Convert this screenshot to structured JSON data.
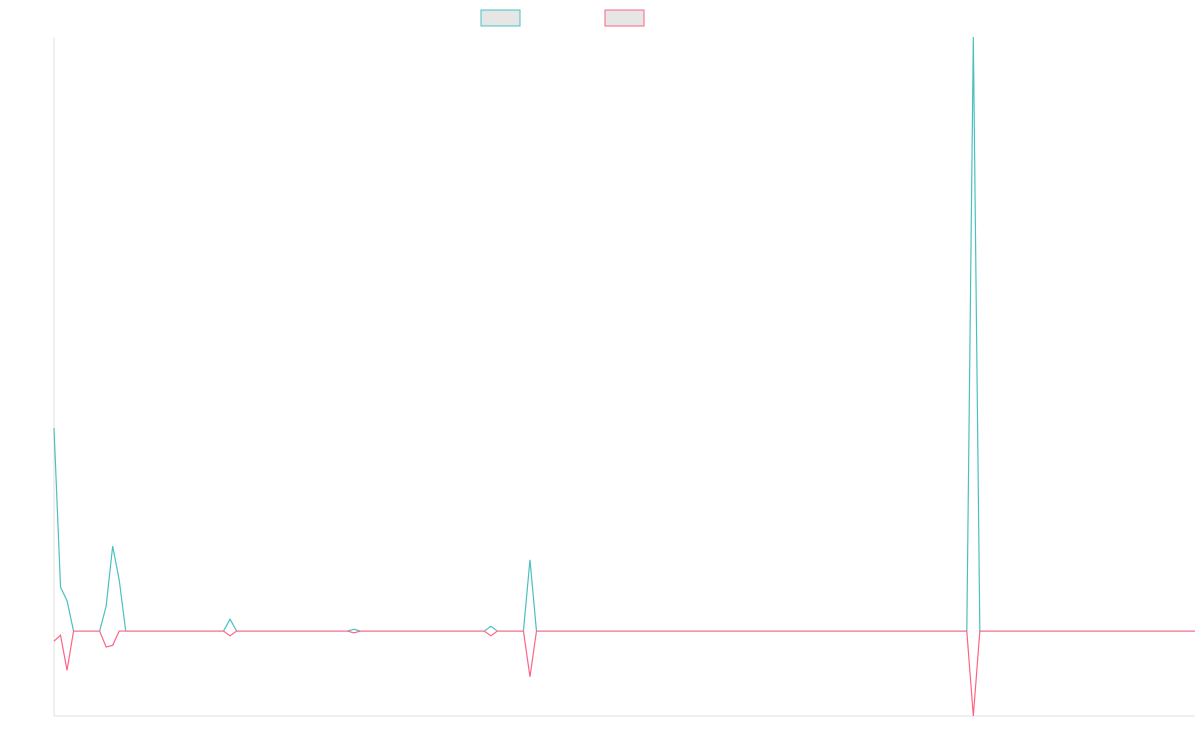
{
  "chart_data": {
    "type": "line",
    "series": [
      {
        "color": "#4bc0c0",
        "values": [
          34.2,
          7.4,
          5.1,
          0,
          0,
          0,
          0,
          0,
          4.2,
          14.3,
          8.6,
          0,
          0,
          0,
          0,
          0,
          0,
          0,
          0,
          0,
          0,
          0,
          0,
          0,
          0,
          0,
          0,
          2,
          0,
          0,
          0,
          0,
          0,
          0,
          0,
          0,
          0,
          0,
          0,
          0,
          0,
          0,
          0,
          0,
          0,
          0,
          0.3,
          0,
          0,
          0,
          0,
          0,
          0,
          0,
          0,
          0,
          0,
          0,
          0,
          0,
          0,
          0,
          0,
          0,
          0,
          0,
          0,
          0.8,
          0,
          0,
          0,
          0,
          0,
          12,
          0,
          0,
          0,
          0,
          0,
          0,
          0,
          0,
          0,
          0,
          0,
          0,
          0,
          0,
          0,
          0,
          0,
          0,
          0,
          0,
          0,
          0,
          0,
          0,
          0,
          0,
          0,
          0,
          0,
          0,
          0,
          0,
          0,
          0,
          0,
          0,
          0,
          0,
          0,
          0,
          0,
          0,
          0,
          0,
          0,
          0,
          0,
          0,
          0,
          0,
          0,
          0,
          0,
          0,
          0,
          0,
          0,
          0,
          0,
          0,
          0,
          0,
          0,
          0,
          0,
          0,
          0,
          100,
          0,
          0,
          0,
          0,
          0,
          0,
          0,
          0,
          0,
          0,
          0,
          0,
          0,
          0,
          0,
          0,
          0,
          0,
          0,
          0,
          0,
          0,
          0,
          0,
          0,
          0,
          0,
          0,
          0,
          0,
          0,
          0,
          0,
          0
        ]
      },
      {
        "color": "#ff6384",
        "values": [
          -1.7,
          -0.7,
          -6.6,
          0,
          0,
          0,
          0,
          0,
          -2.7,
          -2.4,
          0,
          0,
          0,
          0,
          0,
          0,
          0,
          0,
          0,
          0,
          0,
          0,
          0,
          0,
          0,
          0,
          0,
          -0.8,
          0,
          0,
          0,
          0,
          0,
          0,
          0,
          0,
          0,
          0,
          0,
          0,
          0,
          0,
          0,
          0,
          0,
          0,
          -0.3,
          0,
          0,
          0,
          0,
          0,
          0,
          0,
          0,
          0,
          0,
          0,
          0,
          0,
          0,
          0,
          0,
          0,
          0,
          0,
          0,
          -0.8,
          0,
          0,
          0,
          0,
          0,
          -7.7,
          0,
          0,
          0,
          0,
          0,
          0,
          0,
          0,
          0,
          0,
          0,
          0,
          0,
          0,
          0,
          0,
          0,
          0,
          0,
          0,
          0,
          0,
          0,
          0,
          0,
          0,
          0,
          0,
          0,
          0,
          0,
          0,
          0,
          0,
          0,
          0,
          0,
          0,
          0,
          0,
          0,
          0,
          0,
          0,
          0,
          0,
          0,
          0,
          0,
          0,
          0,
          0,
          0,
          0,
          0,
          0,
          0,
          0,
          0,
          0,
          0,
          0,
          0,
          0,
          0,
          0,
          0,
          -14.3,
          0,
          0,
          0,
          0,
          0,
          0,
          0,
          0,
          0,
          0,
          0,
          0,
          0,
          0,
          0,
          0,
          0,
          0,
          0,
          0,
          0,
          0,
          0,
          0,
          0,
          0,
          0,
          0,
          0,
          0,
          0,
          0,
          0,
          0
        ]
      }
    ],
    "ylim": [
      -14.3,
      100
    ],
    "legend": "top"
  }
}
